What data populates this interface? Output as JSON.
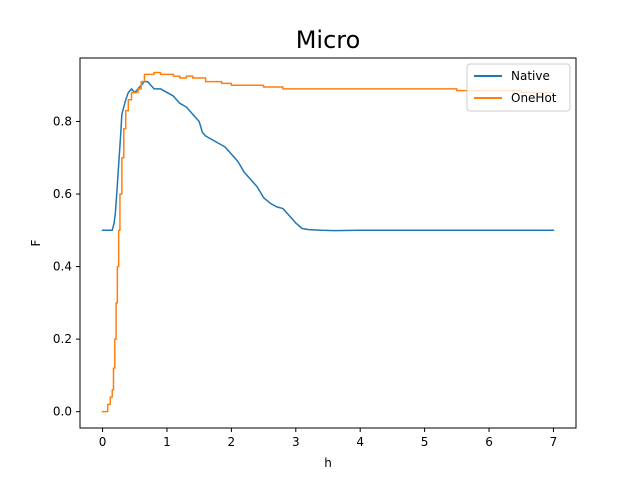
{
  "chart_data": {
    "type": "line",
    "title": "Micro",
    "xlabel": "h",
    "ylabel": "F",
    "xlim": [
      -0.35,
      7.35
    ],
    "ylim": [
      -0.045,
      0.975
    ],
    "xticks": [
      0,
      1,
      2,
      3,
      4,
      5,
      6,
      7
    ],
    "yticks": [
      0.0,
      0.2,
      0.4,
      0.6,
      0.8
    ],
    "grid": false,
    "legend_position": "top-right",
    "series": [
      {
        "name": "Native",
        "color": "#1f77b4",
        "step": false,
        "points": [
          [
            0,
            0.5
          ],
          [
            0.05,
            0.5
          ],
          [
            0.1,
            0.5
          ],
          [
            0.15,
            0.5
          ],
          [
            0.18,
            0.52
          ],
          [
            0.2,
            0.55
          ],
          [
            0.22,
            0.6
          ],
          [
            0.25,
            0.68
          ],
          [
            0.28,
            0.76
          ],
          [
            0.3,
            0.82
          ],
          [
            0.33,
            0.84
          ],
          [
            0.36,
            0.86
          ],
          [
            0.4,
            0.88
          ],
          [
            0.45,
            0.89
          ],
          [
            0.5,
            0.88
          ],
          [
            0.55,
            0.89
          ],
          [
            0.6,
            0.9
          ],
          [
            0.65,
            0.91
          ],
          [
            0.7,
            0.91
          ],
          [
            0.75,
            0.9
          ],
          [
            0.8,
            0.89
          ],
          [
            0.9,
            0.89
          ],
          [
            1.0,
            0.88
          ],
          [
            1.1,
            0.87
          ],
          [
            1.2,
            0.85
          ],
          [
            1.3,
            0.84
          ],
          [
            1.4,
            0.82
          ],
          [
            1.5,
            0.8
          ],
          [
            1.55,
            0.77
          ],
          [
            1.6,
            0.76
          ],
          [
            1.7,
            0.75
          ],
          [
            1.8,
            0.74
          ],
          [
            1.9,
            0.73
          ],
          [
            2.0,
            0.71
          ],
          [
            2.1,
            0.69
          ],
          [
            2.2,
            0.66
          ],
          [
            2.3,
            0.64
          ],
          [
            2.4,
            0.62
          ],
          [
            2.5,
            0.59
          ],
          [
            2.6,
            0.575
          ],
          [
            2.7,
            0.565
          ],
          [
            2.8,
            0.56
          ],
          [
            2.9,
            0.54
          ],
          [
            3.0,
            0.52
          ],
          [
            3.1,
            0.505
          ],
          [
            3.2,
            0.502
          ],
          [
            3.4,
            0.5
          ],
          [
            3.6,
            0.499
          ],
          [
            4.0,
            0.5
          ],
          [
            5.0,
            0.5
          ],
          [
            6.0,
            0.5
          ],
          [
            7.0,
            0.5
          ]
        ]
      },
      {
        "name": "OneHot",
        "color": "#ff7f0e",
        "step": true,
        "points": [
          [
            0,
            0.0
          ],
          [
            0.05,
            0.0
          ],
          [
            0.08,
            0.02
          ],
          [
            0.12,
            0.04
          ],
          [
            0.15,
            0.06
          ],
          [
            0.17,
            0.12
          ],
          [
            0.19,
            0.2
          ],
          [
            0.21,
            0.3
          ],
          [
            0.23,
            0.4
          ],
          [
            0.25,
            0.5
          ],
          [
            0.27,
            0.6
          ],
          [
            0.3,
            0.7
          ],
          [
            0.33,
            0.78
          ],
          [
            0.36,
            0.83
          ],
          [
            0.4,
            0.86
          ],
          [
            0.45,
            0.88
          ],
          [
            0.5,
            0.88
          ],
          [
            0.55,
            0.89
          ],
          [
            0.6,
            0.91
          ],
          [
            0.65,
            0.93
          ],
          [
            0.7,
            0.93
          ],
          [
            0.8,
            0.935
          ],
          [
            0.9,
            0.93
          ],
          [
            1.0,
            0.93
          ],
          [
            1.1,
            0.925
          ],
          [
            1.2,
            0.92
          ],
          [
            1.3,
            0.925
          ],
          [
            1.4,
            0.92
          ],
          [
            1.5,
            0.92
          ],
          [
            1.6,
            0.91
          ],
          [
            1.7,
            0.91
          ],
          [
            1.8,
            0.91
          ],
          [
            1.85,
            0.905
          ],
          [
            2.0,
            0.9
          ],
          [
            2.4,
            0.9
          ],
          [
            2.5,
            0.895
          ],
          [
            2.6,
            0.895
          ],
          [
            2.8,
            0.89
          ],
          [
            3.0,
            0.89
          ],
          [
            4.0,
            0.89
          ],
          [
            5.0,
            0.89
          ],
          [
            5.5,
            0.885
          ],
          [
            6.0,
            0.885
          ],
          [
            6.5,
            0.88
          ],
          [
            7.0,
            0.88
          ]
        ]
      }
    ]
  }
}
